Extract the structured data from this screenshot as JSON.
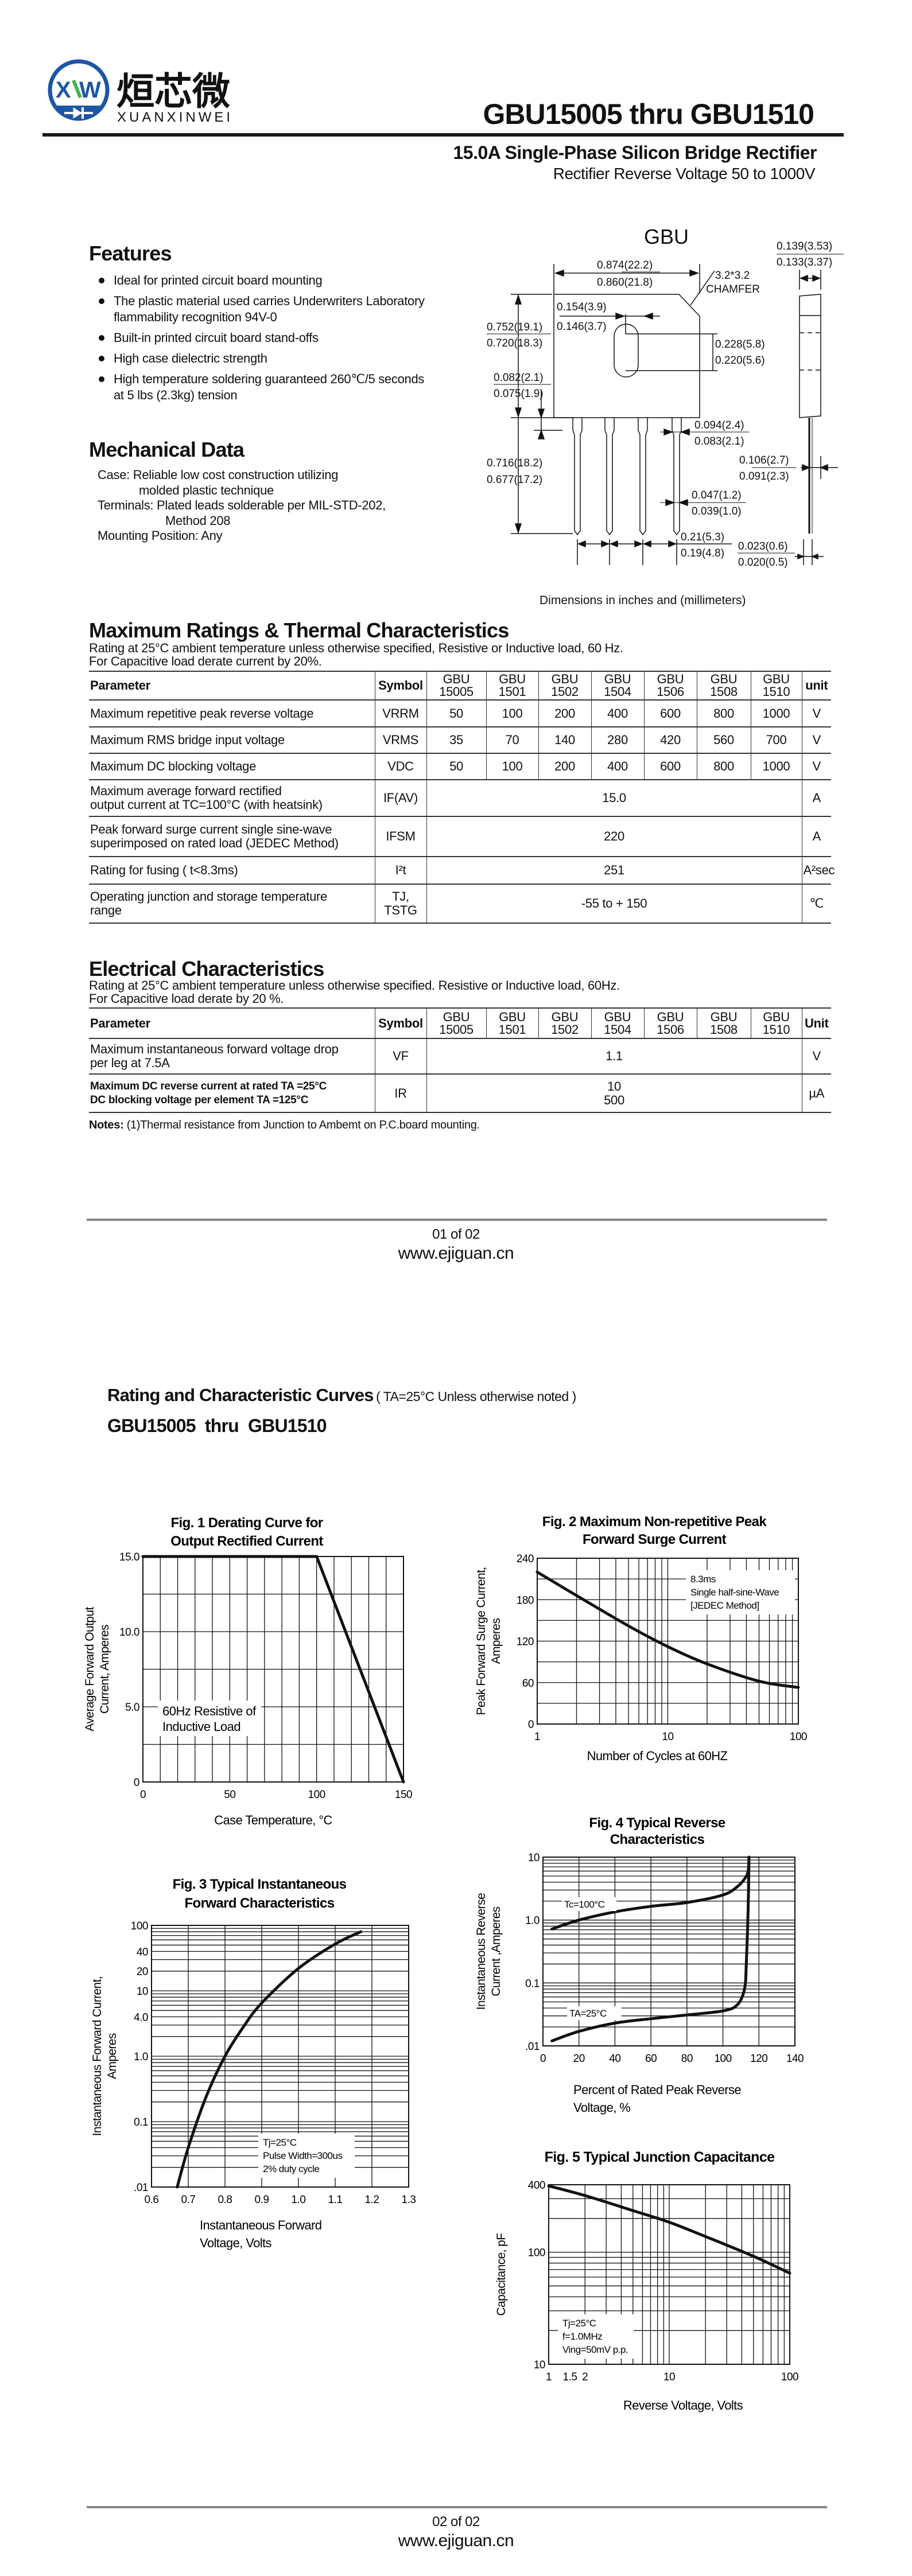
{
  "logo": {
    "cn": "烜芯微",
    "en": "XUANXINWEI",
    "mark": "XW",
    "colors": {
      "blue": "#1d56a5",
      "green": "#3cb54a"
    }
  },
  "header": {
    "title": "GBU15005 thru GBU1510",
    "subtitle": "15.0A Single-Phase Silicon Bridge Rectifier",
    "subtitle2": "Rectifier Reverse Voltage 50 to 1000V"
  },
  "features": {
    "heading": "Features",
    "items": [
      "Ideal for printed circuit  board mounting",
      "The plastic material used carries Underwriters Laboratory flammability recognition 94V-0",
      "Built-in printed circuit board stand-offs",
      "High case dielectric strength",
      "High temperature soldering guaranteed 260℃/5 seconds at 5 lbs (2.3kg) tension"
    ]
  },
  "mechanical": {
    "heading": "Mechanical Data",
    "lines": [
      "Case: Reliable low cost construction utilizing",
      "molded plastic technique",
      "Terminals: Plated leads solderable per MIL-STD-202,",
      "Method 208",
      "Mounting Position: Any"
    ]
  },
  "package": {
    "name": "GBU",
    "chamfer": [
      "3.2*3.2",
      "CHAMFER"
    ],
    "dims": [
      "0.874(22.2)",
      "0.860(21.8)",
      "0.154(3.9)",
      "0.146(3.7)",
      "0.752(19.1)",
      "0.720(18.3)",
      "0.228(5.8)",
      "0.220(5.6)",
      "0.082(2.1)",
      "0.075(1.9)",
      "0.139(3.53)",
      "0.133(3.37)",
      "0.094(2.4)",
      "0.083(2.1)",
      "0.716(18.2)",
      "0.677(17.2)",
      "0.106(2.7)",
      "0.091(2.3)",
      "0.047(1.2)",
      "0.039(1.0)",
      "0.21(5.3)",
      "0.19(4.8)",
      "0.023(0.6)",
      "0.020(0.5)"
    ],
    "caption": "Dimensions in inches and (millimeters)"
  },
  "max_ratings": {
    "heading": "Maximum Ratings & Thermal Characteristics",
    "notes": [
      "Rating at 25°C ambient temperature unless otherwise specified, Resistive or Inductive load, 60 Hz.",
      "For Capacitive load derate current by 20%."
    ],
    "columns": {
      "parameter": "Parameter",
      "symbol": "Symbol",
      "parts": [
        [
          "GBU",
          "15005"
        ],
        [
          "GBU",
          "1501"
        ],
        [
          "GBU",
          "1502"
        ],
        [
          "GBU",
          "1504"
        ],
        [
          "GBU",
          "1506"
        ],
        [
          "GBU",
          "1508"
        ],
        [
          "GBU",
          "1510"
        ]
      ],
      "unit": "unit"
    },
    "rows": [
      {
        "param": [
          "Maximum repetitive peak reverse voltage"
        ],
        "symbol": [
          "VRRM"
        ],
        "values": [
          "50",
          "100",
          "200",
          "400",
          "600",
          "800",
          "1000"
        ],
        "unit": "V"
      },
      {
        "param": [
          "Maximum RMS bridge input voltage"
        ],
        "symbol": [
          "VRMS"
        ],
        "values": [
          "35",
          "70",
          "140",
          "280",
          "420",
          "560",
          "700"
        ],
        "unit": "V"
      },
      {
        "param": [
          "Maximum DC blocking voltage"
        ],
        "symbol": [
          "VDC"
        ],
        "values": [
          "50",
          "100",
          "200",
          "400",
          "600",
          "800",
          "1000"
        ],
        "unit": "V"
      },
      {
        "param": [
          "Maximum average forward rectified",
          "output current at TC=100°C  (with heatsink)"
        ],
        "symbol": [
          "IF(AV)"
        ],
        "merged": [
          "15.0"
        ],
        "unit": "A"
      },
      {
        "param": [
          "Peak forward surge current single sine-wave",
          "superimposed on rated load (JEDEC Method)"
        ],
        "symbol": [
          "IFSM"
        ],
        "merged": [
          "220"
        ],
        "unit": "A"
      },
      {
        "param": [
          "Rating for fusing ( t<8.3ms)"
        ],
        "symbol": [
          "I²t"
        ],
        "merged": [
          "251"
        ],
        "unit": "A²sec"
      },
      {
        "param": [
          "Operating junction and storage temperature",
          "range"
        ],
        "symbol": [
          "TJ,",
          "TSTG"
        ],
        "merged": [
          "-55 to + 150"
        ],
        "unit": "℃"
      }
    ]
  },
  "electrical": {
    "heading": "Electrical Characteristics",
    "notes": [
      "Rating at 25°C ambient temperature unless otherwise specified. Resistive or Inductive load, 60Hz.",
      "For Capacitive load derate by 20 %."
    ],
    "columns": {
      "parameter": "Parameter",
      "symbol": "Symbol",
      "parts": [
        [
          "GBU",
          "15005"
        ],
        [
          "GBU",
          "1501"
        ],
        [
          "GBU",
          "1502"
        ],
        [
          "GBU",
          "1504"
        ],
        [
          "GBU",
          "1506"
        ],
        [
          "GBU",
          "1508"
        ],
        [
          "GBU",
          "1510"
        ]
      ],
      "unit": "Unit"
    },
    "rows": [
      {
        "param": [
          "Maximum instantaneous forward voltage drop",
          "per leg at 7.5A"
        ],
        "symbol": [
          "VF"
        ],
        "merged": [
          "1.1"
        ],
        "unit": "V"
      },
      {
        "param": [
          "Maximum DC reverse current at rated TA =25°C",
          "DC blocking voltage per element      TA =125°C"
        ],
        "bold": true,
        "symbol": [
          "IR"
        ],
        "merged": [
          "10",
          "500"
        ],
        "unit": "µA"
      }
    ],
    "footnote_label": "Notes:",
    "footnote": " (1)Thermal resistance from Junction to Ambemt on P.C.board mounting."
  },
  "footer1": {
    "page": "01 of 02",
    "website": "www.ejiguan.cn"
  },
  "curves": {
    "heading": "Rating and Characteristic Curves",
    "condition": "( TA=25°C Unless otherwise noted )",
    "parts": "GBU15005  thru  GBU1510"
  },
  "footer2": {
    "page": "02 of 02",
    "website": "www.ejiguan.cn"
  },
  "chart_data": [
    {
      "type": "line",
      "title": [
        "Fig. 1 Derating Curve for",
        "Output Rectified Current"
      ],
      "xlabel": [
        "Case Temperature, °C"
      ],
      "ylabel": [
        "Average Forward Output",
        "Current, Amperes"
      ],
      "xscale": "linear",
      "yscale": "linear",
      "xlim": [
        0,
        150
      ],
      "ylim": [
        0,
        15
      ],
      "grid": true,
      "xgrid_step": 10,
      "ygrid_step": 2.5,
      "xticks": [
        {
          "v": 0,
          "label": "0"
        },
        {
          "v": 50,
          "label": "50"
        },
        {
          "v": 100,
          "label": "100"
        },
        {
          "v": 150,
          "label": "150"
        }
      ],
      "yticks": [
        {
          "v": 0,
          "label": "0"
        },
        {
          "v": 5,
          "label": "5.0"
        },
        {
          "v": 10,
          "label": "10.0"
        },
        {
          "v": 15,
          "label": "15.0"
        }
      ],
      "series": [
        {
          "x": [
            0,
            100,
            150
          ],
          "y": [
            15,
            15,
            0
          ],
          "smooth": false
        }
      ],
      "annotations": [
        {
          "lines": [
            "60Hz Resistive of",
            "Inductive Load"
          ]
        }
      ]
    },
    {
      "type": "line",
      "title": [
        "Fig. 2 Maximum Non-repetitive Peak",
        "Forward Surge Current"
      ],
      "xlabel": [
        "Number of Cycles at 60HZ"
      ],
      "ylabel": [
        "Peak Forward Surge Current,",
        "Amperes"
      ],
      "xscale": "log",
      "yscale": "linear",
      "xlim": [
        1,
        100
      ],
      "ylim": [
        0,
        240
      ],
      "grid": true,
      "ygrid_step": 30,
      "xticks": [
        {
          "v": 1,
          "label": "1"
        },
        {
          "v": 10,
          "label": "10"
        },
        {
          "v": 100,
          "label": "100"
        }
      ],
      "yticks": [
        {
          "v": 0,
          "label": "0"
        },
        {
          "v": 60,
          "label": "60"
        },
        {
          "v": 120,
          "label": "120"
        },
        {
          "v": 180,
          "label": "180"
        },
        {
          "v": 240,
          "label": "240"
        }
      ],
      "series": [
        {
          "x": [
            1,
            2,
            5,
            10,
            20,
            50,
            100
          ],
          "y": [
            220,
            186,
            142,
            112,
            87,
            62,
            53
          ],
          "smooth": true
        }
      ],
      "annotations": [
        {
          "lines": [
            "8.3ms",
            "Single half-sine-Wave",
            "[JEDEC Method]"
          ]
        }
      ]
    },
    {
      "type": "line",
      "title": [
        "Fig. 3 Typical Instantaneous",
        "Forward Characteristics"
      ],
      "xlabel": [
        "Instantaneous Forward",
        "Voltage, Volts"
      ],
      "ylabel": [
        "Instantaneous Forward Current,",
        "Amperes"
      ],
      "xscale": "linear",
      "yscale": "log",
      "xlim": [
        0.6,
        1.3
      ],
      "ylim": [
        0.01,
        100
      ],
      "grid": true,
      "xgrid_step": 0.1,
      "xticks": [
        {
          "v": 0.6,
          "label": "0.6"
        },
        {
          "v": 0.7,
          "label": "0.7"
        },
        {
          "v": 0.8,
          "label": "0.8"
        },
        {
          "v": 0.9,
          "label": "0.9"
        },
        {
          "v": 1.0,
          "label": "1.0"
        },
        {
          "v": 1.1,
          "label": "1.1"
        },
        {
          "v": 1.2,
          "label": "1.2"
        },
        {
          "v": 1.3,
          "label": "1.3"
        }
      ],
      "yticks": [
        {
          "v": 0.01,
          "label": ".01"
        },
        {
          "v": 0.1,
          "label": "0.1"
        },
        {
          "v": 1,
          "label": "1.0"
        },
        {
          "v": 4,
          "label": "4.0"
        },
        {
          "v": 10,
          "label": "10"
        },
        {
          "v": 20,
          "label": "20"
        },
        {
          "v": 40,
          "label": "40"
        },
        {
          "v": 100,
          "label": "100"
        }
      ],
      "series": [
        {
          "x": [
            0.67,
            0.7,
            0.75,
            0.8,
            0.85,
            0.9,
            1.0,
            1.1,
            1.17
          ],
          "y": [
            0.01,
            0.04,
            0.25,
            1.0,
            2.8,
            6.5,
            22,
            52,
            80
          ],
          "smooth": true
        }
      ],
      "annotations": [
        {
          "lines": [
            "Tj=25°C",
            "Pulse Width=300us",
            "2% duty cycle"
          ]
        }
      ]
    },
    {
      "type": "line",
      "title": [
        "Fig. 4 Typical Reverse",
        "Characteristics"
      ],
      "xlabel": [
        "Percent of Rated Peak Reverse",
        "Voltage, %"
      ],
      "ylabel": [
        "Instantaneous Reverse",
        "Current ,Amperes"
      ],
      "xscale": "linear",
      "yscale": "log",
      "xlim": [
        0,
        140
      ],
      "ylim": [
        0.01,
        10
      ],
      "grid": true,
      "xgrid_step": 20,
      "xticks": [
        {
          "v": 0,
          "label": "0"
        },
        {
          "v": 20,
          "label": "20"
        },
        {
          "v": 40,
          "label": "40"
        },
        {
          "v": 60,
          "label": "60"
        },
        {
          "v": 80,
          "label": "80"
        },
        {
          "v": 100,
          "label": "100"
        },
        {
          "v": 120,
          "label": "120"
        },
        {
          "v": 140,
          "label": "140"
        }
      ],
      "yticks": [
        {
          "v": 0.01,
          "label": ".01"
        },
        {
          "v": 0.1,
          "label": "0.1"
        },
        {
          "v": 1,
          "label": "1.0"
        },
        {
          "v": 10,
          "label": "10"
        }
      ],
      "series": [
        {
          "name": "Tc=100°C",
          "x": [
            5,
            20,
            40,
            60,
            80,
            100,
            108,
            112,
            114,
            114.5
          ],
          "y": [
            0.72,
            1.0,
            1.35,
            1.65,
            1.9,
            2.5,
            3.4,
            4.5,
            6,
            10
          ],
          "smooth": true
        },
        {
          "name": "TA=25°C",
          "x": [
            5,
            20,
            40,
            60,
            80,
            100,
            108,
            112,
            113,
            114,
            114.5
          ],
          "y": [
            0.012,
            0.017,
            0.023,
            0.027,
            0.031,
            0.036,
            0.045,
            0.08,
            0.2,
            1.5,
            10
          ],
          "smooth": true
        }
      ]
    },
    {
      "type": "line",
      "title": [
        "Fig. 5 Typical Junction Capacitance"
      ],
      "xlabel": [
        "Reverse Voltage, Volts"
      ],
      "ylabel": [
        "Capacitance, pF"
      ],
      "xscale": "log",
      "yscale": "log",
      "xlim": [
        1,
        100
      ],
      "ylim": [
        10,
        400
      ],
      "grid": true,
      "xticks": [
        {
          "v": 1,
          "label": "1"
        },
        {
          "v": 1.5,
          "label": "1.5"
        },
        {
          "v": 2,
          "label": "2"
        },
        {
          "v": 10,
          "label": "10"
        },
        {
          "v": 100,
          "label": "100"
        }
      ],
      "yticks": [
        {
          "v": 10,
          "label": "10"
        },
        {
          "v": 100,
          "label": "100"
        },
        {
          "v": 400,
          "label": "400"
        }
      ],
      "series": [
        {
          "x": [
            1,
            2,
            5,
            10,
            20,
            50,
            100
          ],
          "y": [
            390,
            320,
            235,
            185,
            138,
            92,
            65
          ],
          "smooth": true
        }
      ],
      "annotations": [
        {
          "lines": [
            "Tj=25°C",
            "f=1.0MHz",
            "Ving=50mV p.p."
          ]
        }
      ]
    }
  ]
}
